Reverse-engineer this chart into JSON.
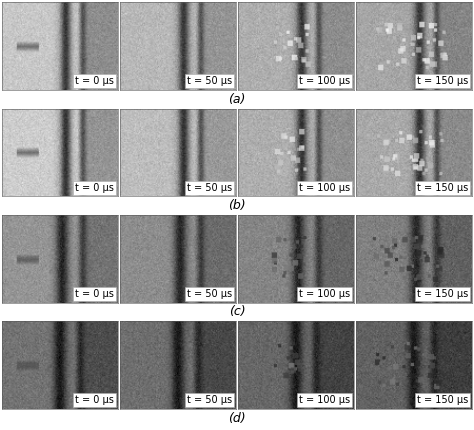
{
  "rows": 4,
  "cols": 4,
  "row_labels": [
    "(a)",
    "(b)",
    "(c)",
    "(d)"
  ],
  "time_labels": [
    "t = 0 μs",
    "t = 50 μs",
    "t = 100 μs",
    "t = 150 μs"
  ],
  "bg_color": "#ffffff",
  "label_fontsize": 7,
  "row_label_fontsize": 9,
  "label_box_color": "#ffffff",
  "label_text_color": "#000000",
  "figure_width": 4.74,
  "figure_height": 4.3
}
